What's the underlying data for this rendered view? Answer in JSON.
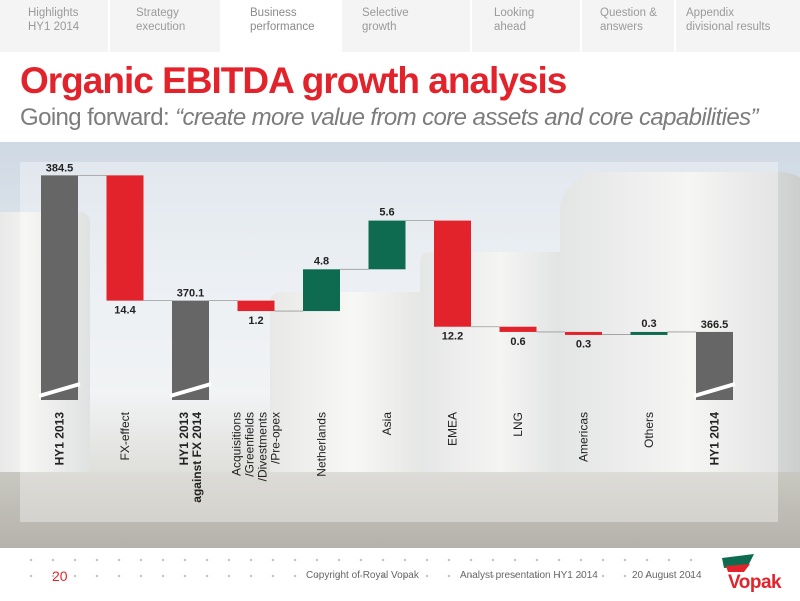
{
  "nav": {
    "items": [
      {
        "line1": "Highlights",
        "line2": "HY1 2014",
        "active": false
      },
      {
        "line1": "Strategy",
        "line2": "execution",
        "active": false
      },
      {
        "line1": "Business",
        "line2": "performance",
        "active": true
      },
      {
        "line1": "Selective",
        "line2": "growth",
        "active": false
      },
      {
        "line1": "Looking",
        "line2": "ahead",
        "active": false
      },
      {
        "line1": "Question &",
        "line2": "answers",
        "active": false
      },
      {
        "line1": "Appendix",
        "line2": "divisional results",
        "active": false
      }
    ]
  },
  "header": {
    "title": "Organic EBITDA growth analysis",
    "subtitle_prefix": "Going forward: ",
    "subtitle_quote": "“create more value from core assets and core capabilities”"
  },
  "chart_data": {
    "type": "bar",
    "subtype": "waterfall",
    "axis_break": true,
    "colors": {
      "total": "#666666",
      "negative": "#e3232b",
      "positive": "#0e6b4f"
    },
    "categories": [
      "HY1 2013",
      "FX-effect",
      "HY1 2013 against FX 2014",
      "Acquisitions /Greenfields /Divestments /Pre-opex",
      "Netherlands",
      "Asia",
      "EMEA",
      "LNG",
      "Americas",
      "Others",
      "HY1 2014"
    ],
    "bars": [
      {
        "label": "HY1 2013",
        "kind": "total",
        "value": 384.5,
        "value_label": "384.5",
        "bold": true
      },
      {
        "label": "FX-effect",
        "kind": "negative",
        "value": 14.4,
        "value_label": "14.4",
        "bold": false
      },
      {
        "label": "HY1 2013\nagainst FX 2014",
        "kind": "total",
        "value": 370.1,
        "value_label": "370.1",
        "bold": true
      },
      {
        "label": "Acquisitions\n/Greenfields\n/Divestments\n/Pre-opex",
        "kind": "negative",
        "value": 1.2,
        "value_label": "1.2",
        "bold": false
      },
      {
        "label": "Netherlands",
        "kind": "positive",
        "value": 4.8,
        "value_label": "4.8",
        "bold": false
      },
      {
        "label": "Asia",
        "kind": "positive",
        "value": 5.6,
        "value_label": "5.6",
        "bold": false
      },
      {
        "label": "EMEA",
        "kind": "negative",
        "value": 12.2,
        "value_label": "12.2",
        "bold": false
      },
      {
        "label": "LNG",
        "kind": "negative",
        "value": 0.6,
        "value_label": "0.6",
        "bold": false
      },
      {
        "label": "Americas",
        "kind": "negative",
        "value": 0.3,
        "value_label": "0.3",
        "bold": false
      },
      {
        "label": "Others",
        "kind": "positive",
        "value": 0.3,
        "value_label": "0.3",
        "bold": false
      },
      {
        "label": "HY1 2014",
        "kind": "total",
        "value": 366.5,
        "value_label": "366.5",
        "bold": true
      }
    ]
  },
  "footer": {
    "page": "20",
    "copyright": "Copyright of Royal Vopak",
    "event": "Analyst presentation HY1 2014",
    "date": "20 August 2014",
    "logo_text": "Vopak"
  }
}
